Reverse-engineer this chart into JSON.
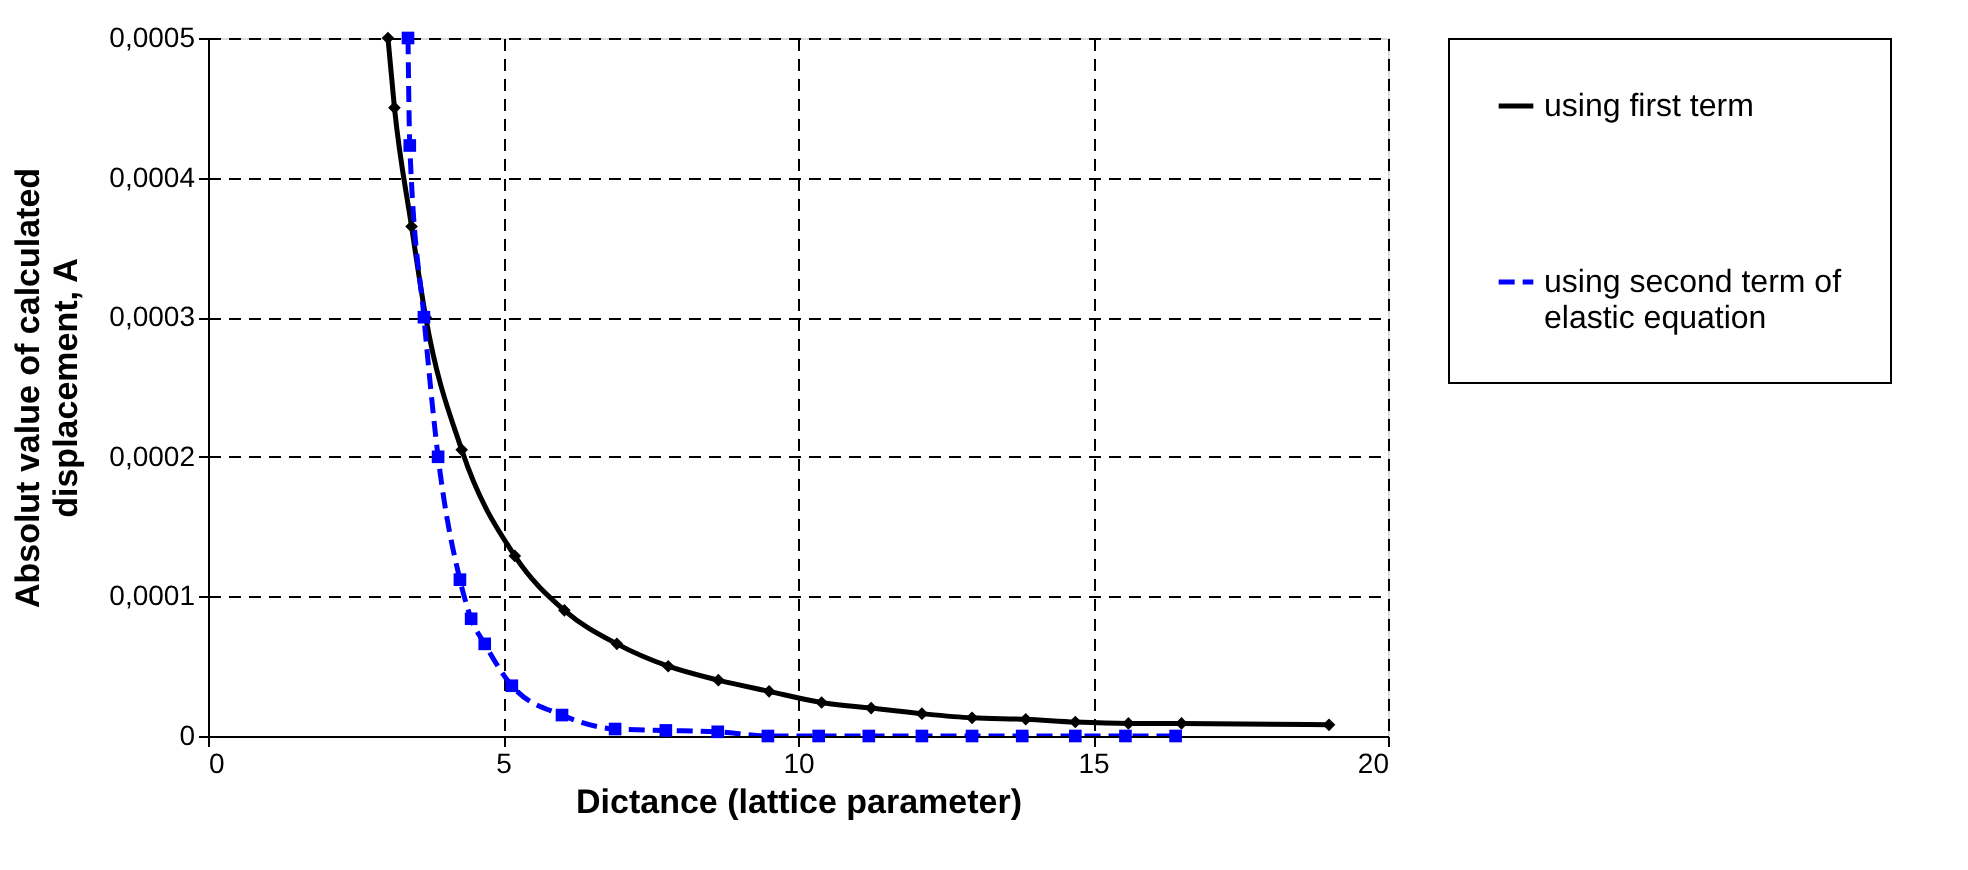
{
  "chart_data": {
    "type": "line",
    "xlabel": "Dictance (lattice parameter)",
    "ylabel": "Absolut value of calculated displacement, A",
    "xlim": [
      0,
      20
    ],
    "xticks": [
      0,
      5,
      10,
      15,
      20
    ],
    "ylim": [
      0,
      0.0005
    ],
    "yticks": [
      {
        "value": 0,
        "label": "0"
      },
      {
        "value": 0.0001,
        "label": "0,0001"
      },
      {
        "value": 0.0002,
        "label": "0,0002"
      },
      {
        "value": 0.0003,
        "label": "0,0003"
      },
      {
        "value": 0.0004,
        "label": "0,0004"
      },
      {
        "value": 0.0005,
        "label": "0,0005"
      }
    ],
    "grid": true,
    "legend": "right",
    "series": [
      {
        "name": "using first term",
        "color": "#000000",
        "marker": "diamond",
        "line_style": "solid",
        "x": [
          3.05,
          3.16,
          3.45,
          3.69,
          4.3,
          5.2,
          6.04,
          6.93,
          7.8,
          8.65,
          9.51,
          10.4,
          11.24,
          12.1,
          12.95,
          13.86,
          14.7,
          15.6,
          16.5,
          19.0
        ],
        "values": [
          0.0005,
          0.00045,
          0.000365,
          0.0003,
          0.000205,
          0.000129,
          9e-05,
          6.6e-05,
          5e-05,
          4e-05,
          3.2e-05,
          2.4e-05,
          2e-05,
          1.6e-05,
          1.3e-05,
          1.2e-05,
          1e-05,
          9e-06,
          9e-06,
          8e-06
        ]
      },
      {
        "name": "using second term of elastic equation",
        "color": "#0000ff",
        "marker": "square",
        "line_style": "dashed",
        "x": [
          3.39,
          3.42,
          3.66,
          3.9,
          4.27,
          4.46,
          4.69,
          5.15,
          6.0,
          6.9,
          7.76,
          8.64,
          9.49,
          10.35,
          11.2,
          12.1,
          12.95,
          13.8,
          14.7,
          15.55,
          16.4
        ],
        "values": [
          0.0005,
          0.000423,
          0.0003,
          0.0002,
          0.000112,
          8.4e-05,
          6.6e-05,
          3.6e-05,
          1.5e-05,
          5e-06,
          4e-06,
          3e-06,
          0,
          0,
          0,
          0,
          0,
          0,
          0,
          0,
          0
        ]
      }
    ]
  }
}
